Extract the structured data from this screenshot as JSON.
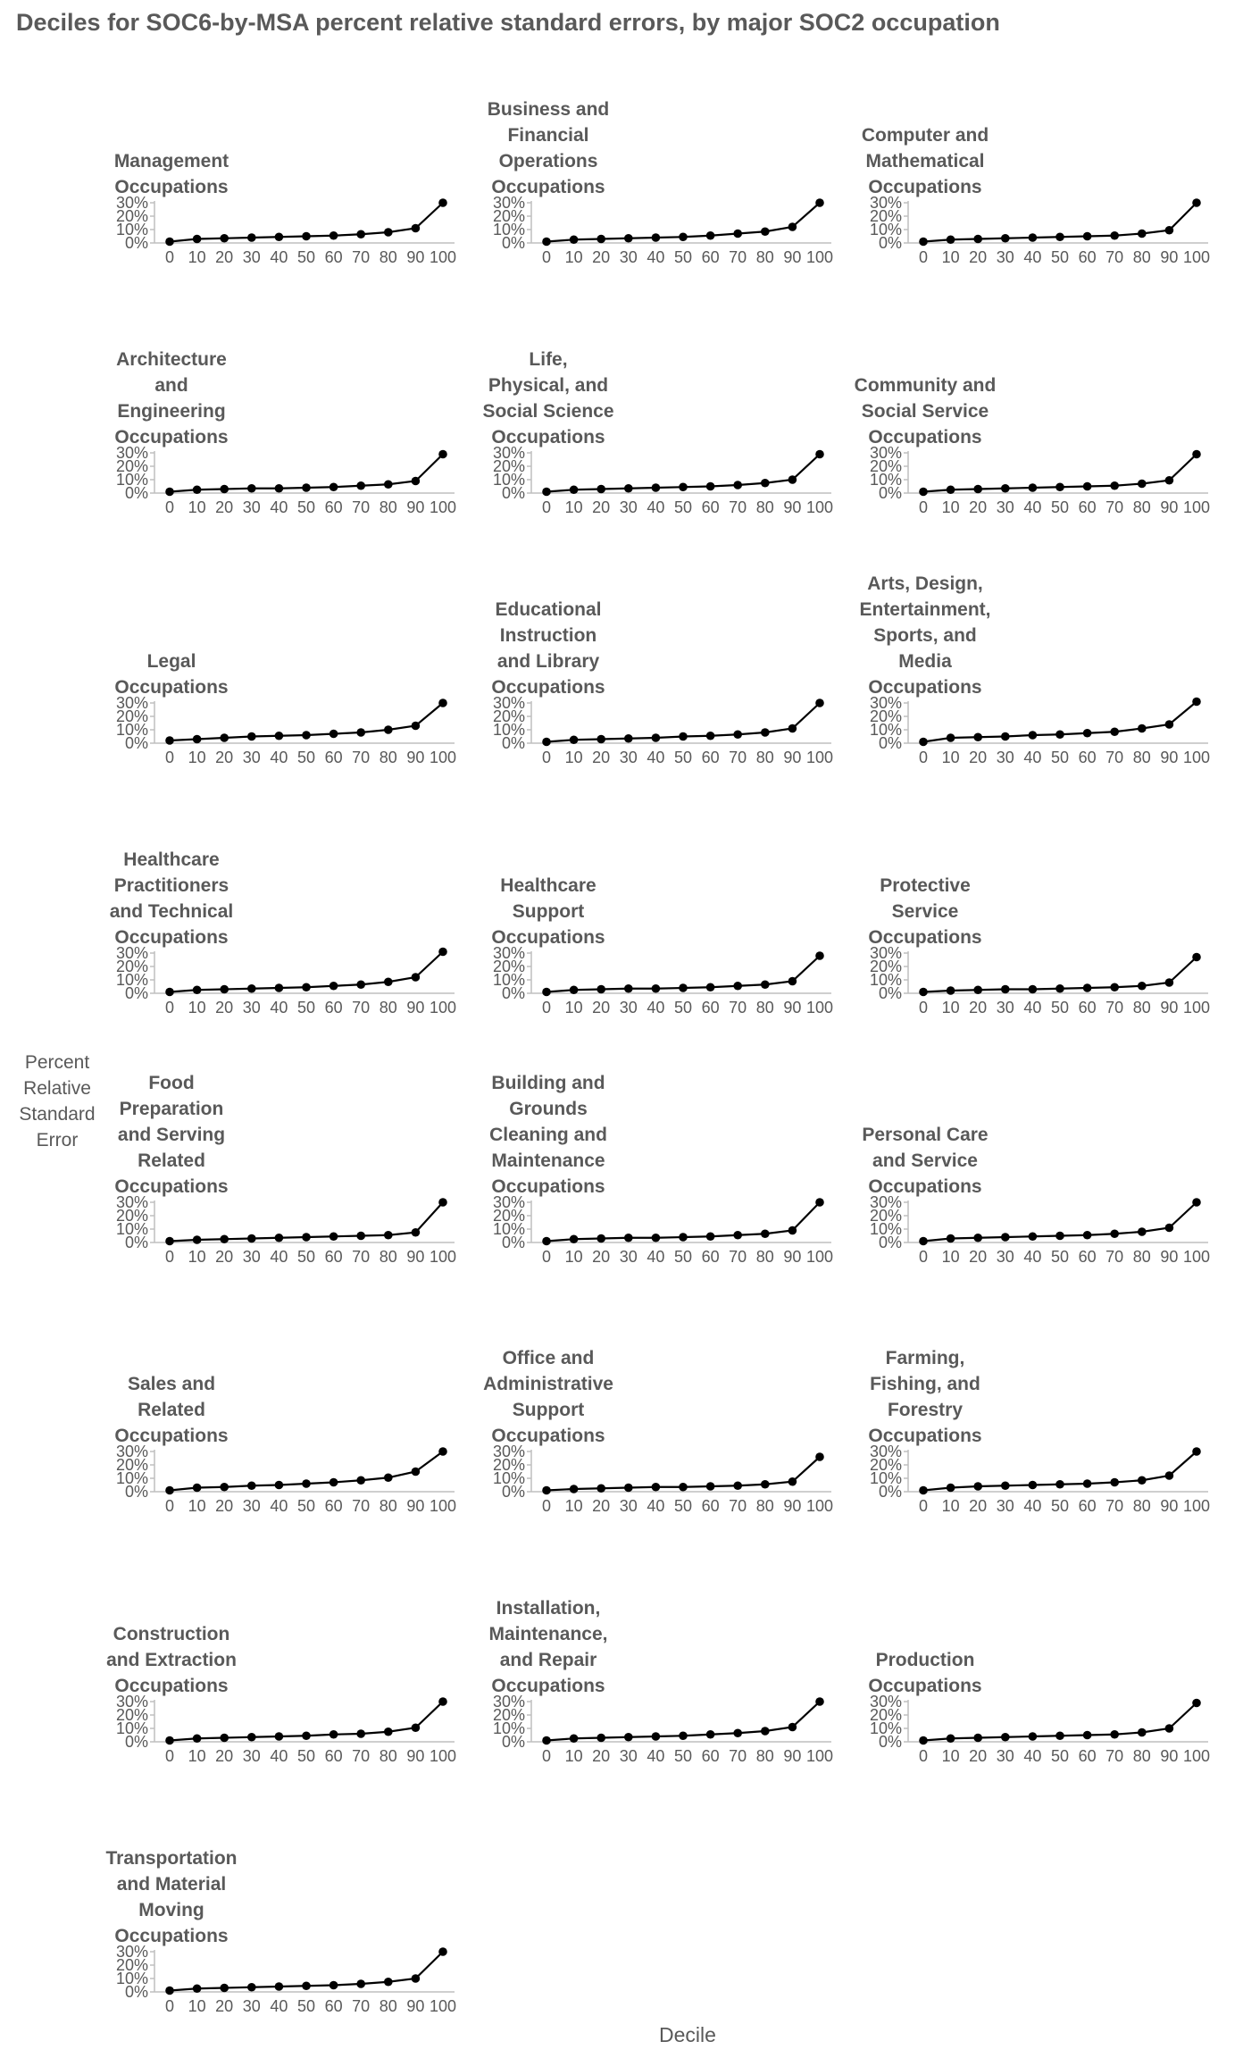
{
  "title": "Deciles for SOC6-by-MSA percent relative standard errors, by major SOC2 occupation",
  "ylabel_lines": [
    "Percent",
    "Relative",
    "Standard",
    "Error"
  ],
  "xlabel": "Decile",
  "chart_data": {
    "type": "line",
    "title": "Deciles for SOC6-by-MSA percent relative standard errors, by major SOC2 occupation",
    "xlabel": "Decile",
    "ylabel": "Percent Relative Standard Error",
    "x": [
      0,
      10,
      20,
      30,
      40,
      50,
      60,
      70,
      80,
      90,
      100
    ],
    "x_tick_labels": [
      "0",
      "10",
      "20",
      "30",
      "40",
      "50",
      "60",
      "70",
      "80",
      "90",
      "100"
    ],
    "y_tick_labels": [
      "0%",
      "10%",
      "20%",
      "30%"
    ],
    "ylim": [
      0,
      30
    ],
    "grid": false,
    "panels": [
      {
        "title_lines": [
          "Management",
          "Occupations"
        ],
        "values": [
          1,
          3,
          3.5,
          4,
          4.5,
          5,
          5.5,
          6.5,
          8,
          11,
          30
        ]
      },
      {
        "title_lines": [
          "Business and",
          "Financial",
          "Operations",
          "Occupations"
        ],
        "values": [
          1,
          2.5,
          3,
          3.5,
          4,
          4.5,
          5.5,
          7,
          8.5,
          12,
          30
        ]
      },
      {
        "title_lines": [
          "Computer and",
          "Mathematical",
          "Occupations"
        ],
        "values": [
          1,
          2.5,
          3,
          3.5,
          4,
          4.5,
          5,
          5.5,
          7,
          9.5,
          30
        ]
      },
      {
        "title_lines": [
          "Architecture",
          "and",
          "Engineering",
          "Occupations"
        ],
        "values": [
          1,
          2.5,
          3,
          3.5,
          3.5,
          4,
          4.5,
          5.5,
          6.5,
          9,
          29
        ]
      },
      {
        "title_lines": [
          "Life,",
          "Physical, and",
          "Social Science",
          "Occupations"
        ],
        "values": [
          1,
          2.5,
          3,
          3.5,
          4,
          4.5,
          5,
          6,
          7.5,
          10,
          29
        ]
      },
      {
        "title_lines": [
          "Community and",
          "Social Service",
          "Occupations"
        ],
        "values": [
          1,
          2.5,
          3,
          3.5,
          4,
          4.5,
          5,
          5.5,
          7,
          9.5,
          29
        ]
      },
      {
        "title_lines": [
          "Legal",
          "Occupations"
        ],
        "values": [
          2,
          3,
          4,
          5,
          5.5,
          6,
          7,
          8,
          10,
          13,
          30
        ]
      },
      {
        "title_lines": [
          "Educational",
          "Instruction",
          "and Library",
          "Occupations"
        ],
        "values": [
          1,
          2.5,
          3,
          3.5,
          4,
          5,
          5.5,
          6.5,
          8,
          11,
          30
        ]
      },
      {
        "title_lines": [
          "Arts, Design,",
          "Entertainment,",
          "Sports, and",
          "Media",
          "Occupations"
        ],
        "values": [
          1,
          4,
          4.5,
          5,
          6,
          6.5,
          7.5,
          8.5,
          11,
          14,
          31
        ]
      },
      {
        "title_lines": [
          "Healthcare",
          "Practitioners",
          "and Technical",
          "Occupations"
        ],
        "values": [
          1,
          2.5,
          3,
          3.5,
          4,
          4.5,
          5.5,
          6.5,
          8.5,
          12,
          31
        ]
      },
      {
        "title_lines": [
          "Healthcare",
          "Support",
          "Occupations"
        ],
        "values": [
          1,
          2.5,
          3,
          3.5,
          3.5,
          4,
          4.5,
          5.5,
          6.5,
          9,
          28
        ]
      },
      {
        "title_lines": [
          "Protective",
          "Service",
          "Occupations"
        ],
        "values": [
          1,
          2,
          2.5,
          3,
          3,
          3.5,
          4,
          4.5,
          5.5,
          8,
          27
        ]
      },
      {
        "title_lines": [
          "Food",
          "Preparation",
          "and Serving",
          "Related",
          "Occupations"
        ],
        "values": [
          1,
          2,
          2.5,
          3,
          3.5,
          4,
          4.5,
          5,
          5.5,
          7.5,
          30
        ]
      },
      {
        "title_lines": [
          "Building and",
          "Grounds",
          "Cleaning and",
          "Maintenance",
          "Occupations"
        ],
        "values": [
          1,
          2.5,
          3,
          3.5,
          3.5,
          4,
          4.5,
          5.5,
          6.5,
          9,
          30
        ]
      },
      {
        "title_lines": [
          "Personal Care",
          "and Service",
          "Occupations"
        ],
        "values": [
          1,
          3,
          3.5,
          4,
          4.5,
          5,
          5.5,
          6.5,
          8,
          11,
          30
        ]
      },
      {
        "title_lines": [
          "Sales and",
          "Related",
          "Occupations"
        ],
        "values": [
          1,
          3,
          3.5,
          4.5,
          5,
          6,
          7,
          8.5,
          10.5,
          15,
          30
        ]
      },
      {
        "title_lines": [
          "Office and",
          "Administrative",
          "Support",
          "Occupations"
        ],
        "values": [
          1,
          2,
          2.5,
          3,
          3.5,
          3.5,
          4,
          4.5,
          5.5,
          7.5,
          26
        ]
      },
      {
        "title_lines": [
          "Farming,",
          "Fishing, and",
          "Forestry",
          "Occupations"
        ],
        "values": [
          1,
          3,
          4,
          4.5,
          5,
          5.5,
          6,
          7,
          8.5,
          12,
          30
        ]
      },
      {
        "title_lines": [
          "Construction",
          "and Extraction",
          "Occupations"
        ],
        "values": [
          1,
          2.5,
          3,
          3.5,
          4,
          4.5,
          5.5,
          6,
          7.5,
          10.5,
          30
        ]
      },
      {
        "title_lines": [
          "Installation,",
          "Maintenance,",
          "and Repair",
          "Occupations"
        ],
        "values": [
          1,
          2.5,
          3,
          3.5,
          4,
          4.5,
          5.5,
          6.5,
          8,
          11,
          30
        ]
      },
      {
        "title_lines": [
          "Production",
          "Occupations"
        ],
        "values": [
          1,
          2.5,
          3,
          3.5,
          4,
          4.5,
          5,
          5.5,
          7,
          10,
          29
        ]
      },
      {
        "title_lines": [
          "Transportation",
          "and Material",
          "Moving",
          "Occupations"
        ],
        "values": [
          1,
          2.5,
          3,
          3.5,
          4,
          4.5,
          5,
          6,
          7.5,
          10,
          30
        ]
      }
    ]
  }
}
